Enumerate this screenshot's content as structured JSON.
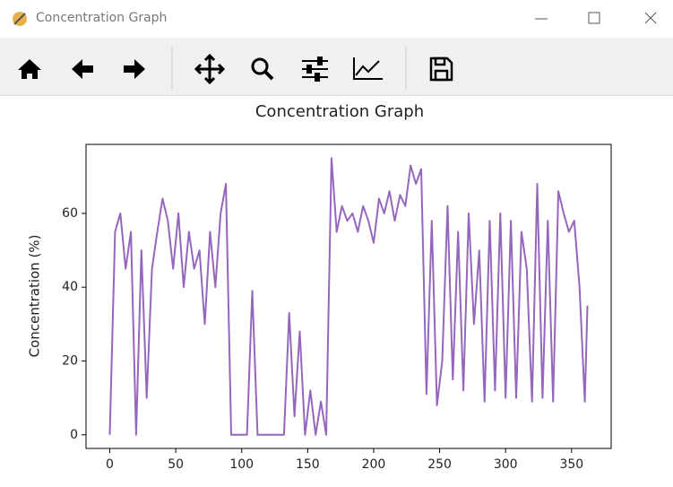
{
  "window": {
    "title": "Concentration Graph"
  },
  "chart_data": {
    "type": "line",
    "title": "Concentration Graph",
    "ylabel": "Concentration (%)",
    "x": [
      0,
      4,
      8,
      12,
      16,
      20,
      24,
      28,
      32,
      36,
      40,
      44,
      48,
      52,
      56,
      60,
      64,
      68,
      72,
      76,
      80,
      84,
      88,
      92,
      96,
      100,
      104,
      108,
      112,
      116,
      120,
      124,
      128,
      132,
      136,
      140,
      144,
      148,
      152,
      156,
      160,
      164,
      168,
      172,
      176,
      180,
      184,
      188,
      192,
      196,
      200,
      204,
      208,
      212,
      216,
      220,
      224,
      228,
      232,
      236,
      240,
      244,
      248,
      252,
      256,
      260,
      264,
      268,
      272,
      276,
      280,
      284,
      288,
      292,
      296,
      300,
      304,
      308,
      312,
      316,
      320,
      324,
      328,
      332,
      336,
      340,
      344,
      348,
      352,
      356,
      360,
      362
    ],
    "series": [
      {
        "name": "Concentration",
        "color": "#9467bd",
        "values": [
          0,
          55,
          60,
          45,
          55,
          0,
          50,
          10,
          45,
          55,
          64,
          58,
          45,
          60,
          40,
          55,
          45,
          50,
          30,
          55,
          40,
          60,
          68,
          0,
          0,
          0,
          0,
          39,
          0,
          0,
          0,
          0,
          0,
          0,
          33,
          5,
          28,
          0,
          12,
          0,
          9,
          0,
          75,
          55,
          62,
          58,
          60,
          55,
          62,
          58,
          52,
          64,
          60,
          66,
          58,
          65,
          62,
          73,
          68,
          72,
          11,
          58,
          8,
          20,
          62,
          15,
          55,
          12,
          60,
          30,
          50,
          9,
          58,
          12,
          60,
          10,
          58,
          10,
          55,
          45,
          9,
          68,
          10,
          58,
          9,
          66,
          60,
          55,
          58,
          40,
          9,
          35
        ]
      }
    ],
    "xlim": [
      -18,
      380
    ],
    "ylim": [
      -3.7,
      78.7
    ],
    "xticks": [
      0,
      50,
      100,
      150,
      200,
      250,
      300,
      350
    ],
    "yticks": [
      0,
      20,
      40,
      60
    ],
    "grid": false
  }
}
